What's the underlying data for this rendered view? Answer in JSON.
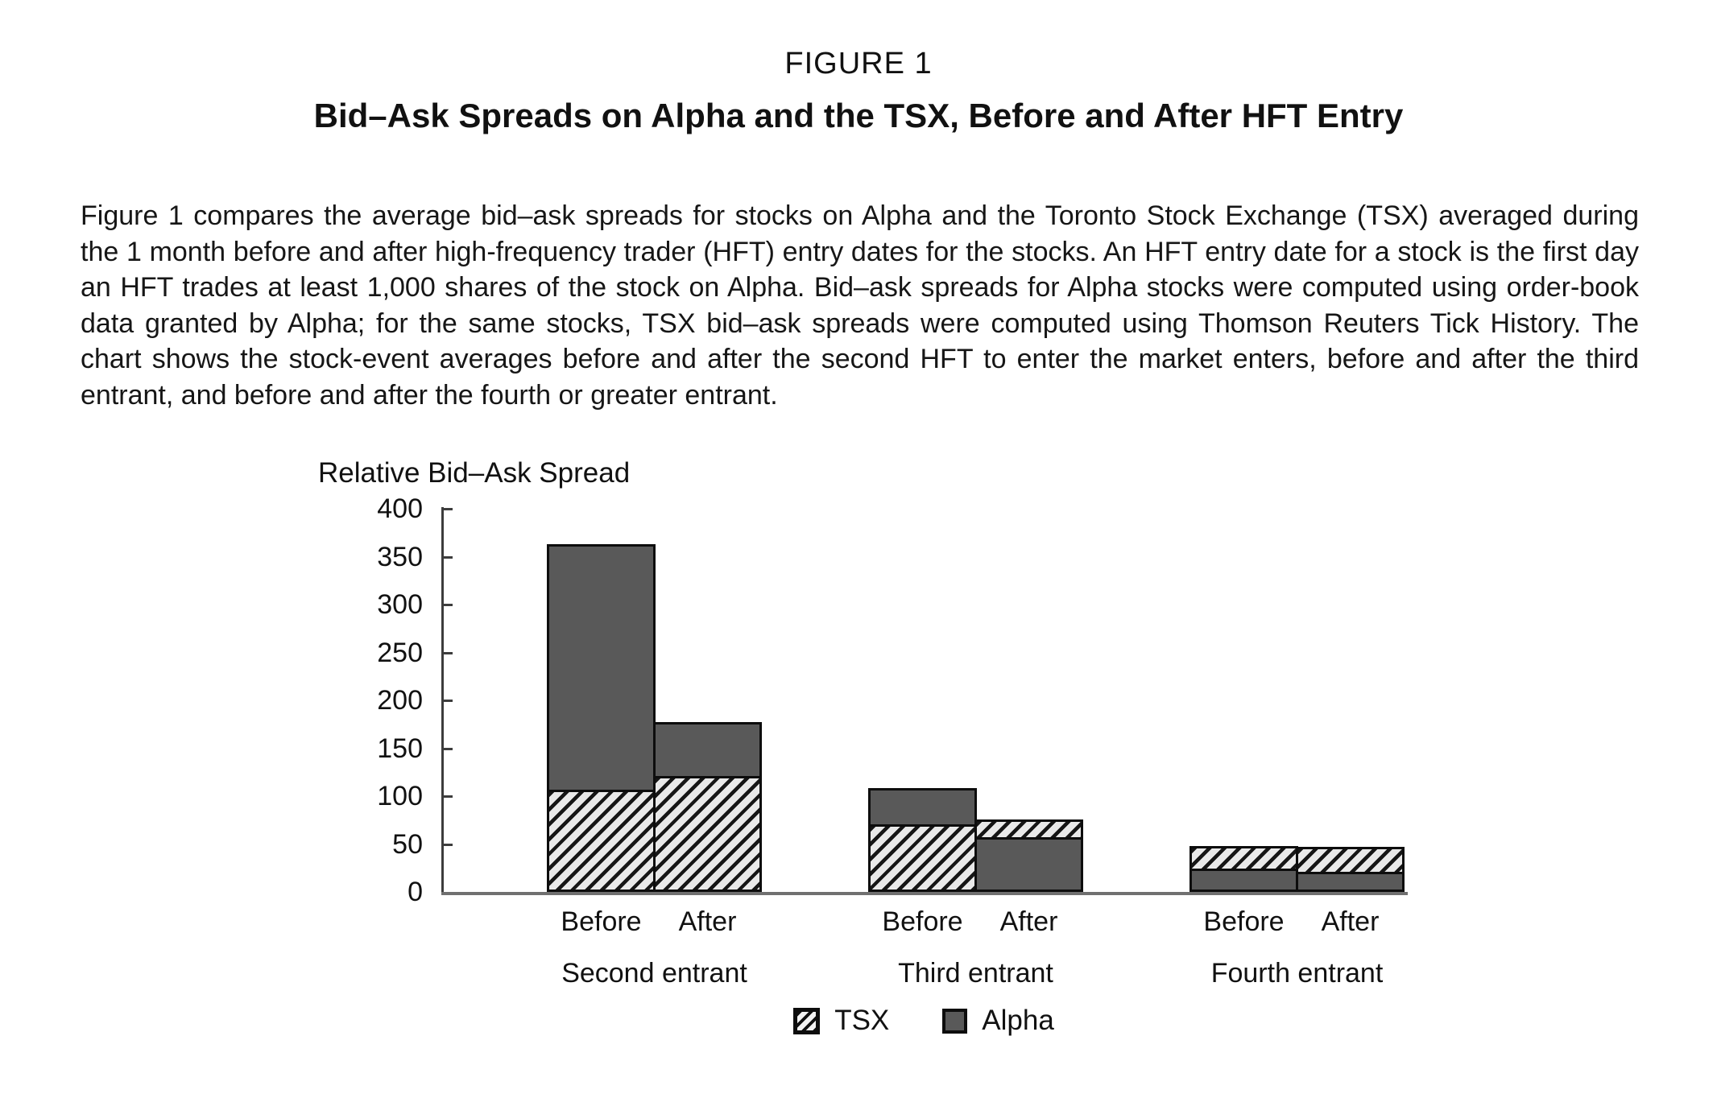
{
  "figure": {
    "label": "FIGURE 1",
    "title": "Bid–Ask Spreads on Alpha and the TSX, Before and After HFT Entry",
    "caption": "Figure 1 compares the average bid–ask spreads for stocks on Alpha and the Toronto Stock Exchange (TSX) averaged during the 1 month before and after high-frequency trader (HFT) entry dates for the stocks. An HFT entry date for a stock is the first day an HFT trades at least 1,000 shares of the stock on Alpha. Bid–ask spreads for Alpha stocks were computed using order-book data granted by Alpha; for the same stocks, TSX bid–ask spreads were computed using Thomson Reuters Tick History. The chart shows the stock-event averages before and after the second HFT to enter the market enters, before and after the third entrant, and before and after the fourth or greater entrant."
  },
  "chart_data": {
    "type": "bar",
    "subtype": "grouped-overlapping",
    "axis_title": "Relative Bid–Ask Spread",
    "ylabel": "Relative Bid–Ask Spread",
    "xlabel": "",
    "ylim": [
      0,
      400
    ],
    "ytick_interval": 50,
    "ytick_labels": [
      "0",
      "50",
      "100",
      "150",
      "200",
      "250",
      "300",
      "350",
      "400"
    ],
    "grid": false,
    "groups": [
      "Second entrant",
      "Third entrant",
      "Fourth entrant"
    ],
    "bar_labels": [
      "Before",
      "After"
    ],
    "series": [
      {
        "name": "TSX",
        "style": "diagonal-hatch",
        "values": [
          [
            107,
            121
          ],
          [
            71,
            76
          ],
          [
            48,
            47
          ]
        ]
      },
      {
        "name": "Alpha",
        "style": "solid",
        "color": "#595959",
        "values": [
          [
            363,
            177
          ],
          [
            108,
            57
          ],
          [
            24,
            21
          ]
        ]
      }
    ],
    "legend_position": "bottom",
    "overlap_note": "Both series bars start at zero and overlap in the same slot; the shorter bar is drawn in front of the taller one"
  },
  "colors": {
    "bar_dark": "#595959",
    "hatch_stripe": "#161616",
    "hatch_background": "#e9e9e9",
    "axis": "#3d3d3d",
    "baseline": "#707070",
    "text": "#111111",
    "background": "#ffffff"
  }
}
